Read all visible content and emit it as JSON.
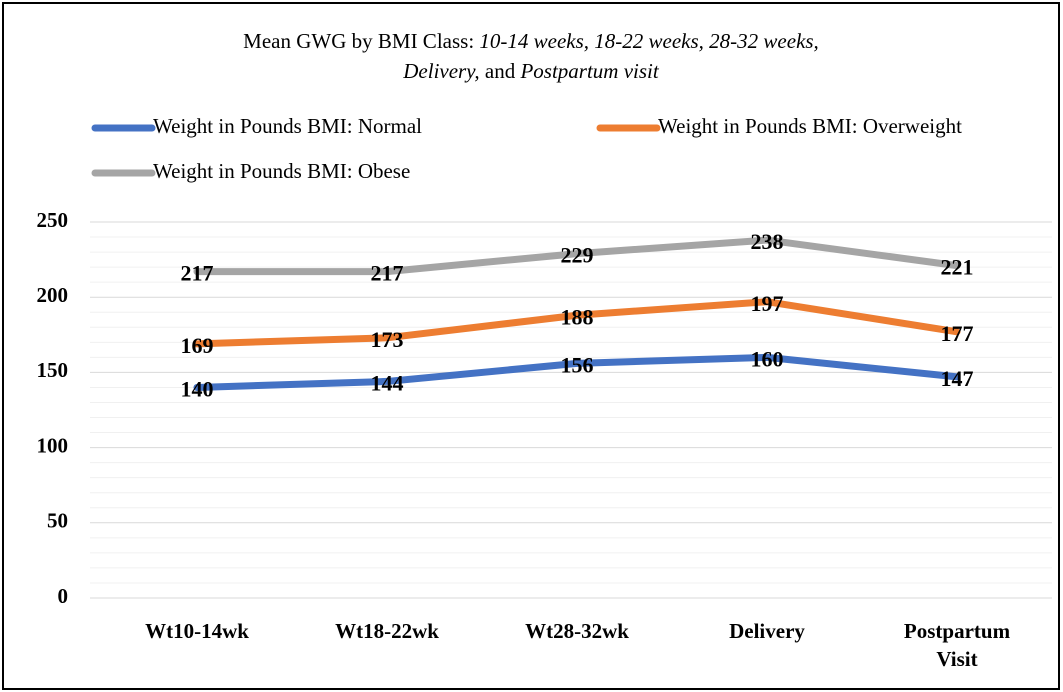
{
  "chart_data": {
    "type": "line",
    "title": [
      {
        "text": "Mean GWG by BMI Class: ",
        "italic": false
      },
      {
        "text": "10-14 weeks, 18-22 weeks, 28-32 weeks,",
        "italic": true
      },
      {
        "text": "Delivery,",
        "italic": true
      },
      {
        "text": " and ",
        "italic": false
      },
      {
        "text": "Postpartum visit",
        "italic": true
      }
    ],
    "categories": [
      "Wt10-14wk",
      "Wt18-22wk",
      "Wt28-32wk",
      "Delivery",
      "Postpartum Visit"
    ],
    "series": [
      {
        "name": "Weight in Pounds BMI: Normal",
        "color": "#4472c4",
        "values": [
          140,
          144,
          156,
          160,
          147
        ]
      },
      {
        "name": "Weight in Pounds BMI: Overweight",
        "color": "#ed7d31",
        "values": [
          169,
          173,
          188,
          197,
          177
        ]
      },
      {
        "name": "Weight in Pounds BMI: Obese",
        "color": "#a5a5a5",
        "values": [
          217,
          217,
          229,
          238,
          221
        ]
      }
    ],
    "ylim": [
      0,
      250
    ],
    "yticks": [
      0,
      50,
      100,
      150,
      200,
      250
    ],
    "minor_yticks": [
      10,
      20,
      30,
      40,
      60,
      70,
      80,
      90,
      110,
      120,
      130,
      140,
      160,
      170,
      180,
      190,
      210,
      220,
      230,
      240
    ],
    "grid": true,
    "legend": "top"
  }
}
